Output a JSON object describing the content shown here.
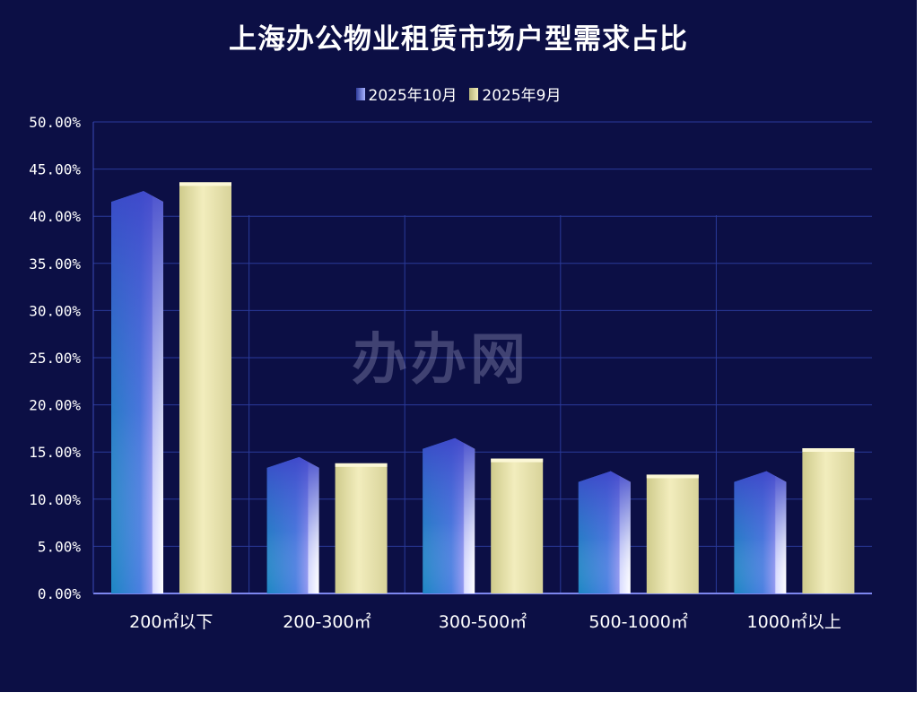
{
  "chart_data": {
    "type": "bar",
    "title": "上海办公物业租赁市场户型需求占比",
    "categories": [
      "200㎡以下",
      "200-300㎡",
      "300-500㎡",
      "500-1000㎡",
      "1000㎡以上"
    ],
    "series": [
      {
        "name": "2025年10月",
        "values": [
          42.0,
          13.8,
          15.8,
          12.3,
          12.3
        ]
      },
      {
        "name": "2025年9月",
        "values": [
          43.6,
          13.8,
          14.3,
          12.6,
          15.4
        ]
      }
    ],
    "y_ticks": [
      "0.00%",
      "5.00%",
      "10.00%",
      "15.00%",
      "20.00%",
      "25.00%",
      "30.00%",
      "35.00%",
      "40.00%",
      "45.00%",
      "50.00%"
    ],
    "ylim": [
      0,
      50
    ],
    "legend_position": "top-center",
    "grid": true
  },
  "watermark": "办办网",
  "colors": {
    "background": "#0c0f45",
    "grid": "#2a3a9a",
    "series_0_light": "#cfd4ff",
    "series_0_dark": "#2f3c9c",
    "series_1_light": "#f4efc0",
    "series_1_dark": "#c9c48a"
  }
}
